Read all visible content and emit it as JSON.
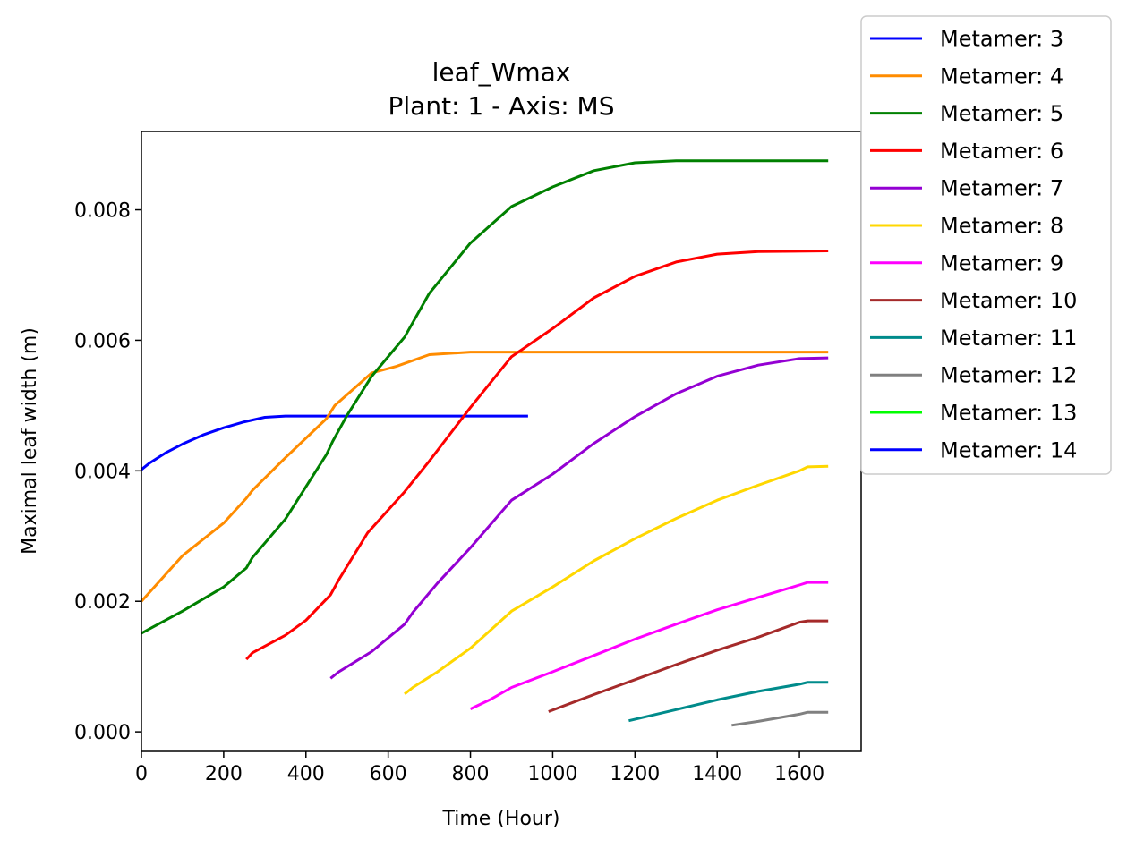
{
  "chart_data": {
    "type": "line",
    "title": [
      "leaf_Wmax",
      "Plant: 1 - Axis: MS"
    ],
    "xlabel": "Time (Hour)",
    "ylabel": "Maximal leaf width (m)",
    "xlim": [
      0,
      1750
    ],
    "ylim": [
      -0.0003,
      0.0092
    ],
    "xticks": [
      0,
      200,
      400,
      600,
      800,
      1000,
      1200,
      1400,
      1600
    ],
    "xtick_labels": [
      "0",
      "200",
      "400",
      "600",
      "800",
      "1000",
      "1200",
      "1400",
      "1600"
    ],
    "yticks": [
      0,
      0.002,
      0.004,
      0.006,
      0.008
    ],
    "ytick_labels": [
      "0.000",
      "0.002",
      "0.004",
      "0.006",
      "0.008"
    ],
    "grid": false,
    "legend_position": "outside-top-right",
    "series": [
      {
        "name": "Metamer: 3",
        "color": "#0000ff",
        "points": [
          [
            0,
            0.00402
          ],
          [
            20,
            0.00412
          ],
          [
            60,
            0.00428
          ],
          [
            100,
            0.00441
          ],
          [
            150,
            0.00455
          ],
          [
            200,
            0.00466
          ],
          [
            250,
            0.00475
          ],
          [
            300,
            0.00482
          ],
          [
            350,
            0.00484
          ],
          [
            400,
            0.00484
          ],
          [
            600,
            0.00484
          ],
          [
            800,
            0.00484
          ],
          [
            940,
            0.00484
          ]
        ]
      },
      {
        "name": "Metamer: 4",
        "color": "#ff8c00",
        "points": [
          [
            0,
            0.002
          ],
          [
            100,
            0.0027
          ],
          [
            200,
            0.0032
          ],
          [
            255,
            0.00358
          ],
          [
            270,
            0.0037
          ],
          [
            350,
            0.0042
          ],
          [
            450,
            0.0048
          ],
          [
            470,
            0.005
          ],
          [
            560,
            0.0055
          ],
          [
            620,
            0.0056
          ],
          [
            700,
            0.00578
          ],
          [
            800,
            0.00582
          ],
          [
            1000,
            0.00582
          ],
          [
            1200,
            0.00582
          ],
          [
            1400,
            0.00582
          ],
          [
            1670,
            0.00582
          ]
        ]
      },
      {
        "name": "Metamer: 5",
        "color": "#008000",
        "points": [
          [
            0,
            0.00151
          ],
          [
            20,
            0.00158
          ],
          [
            100,
            0.00185
          ],
          [
            200,
            0.00222
          ],
          [
            255,
            0.00251
          ],
          [
            270,
            0.00267
          ],
          [
            350,
            0.00326
          ],
          [
            450,
            0.00425
          ],
          [
            465,
            0.00445
          ],
          [
            500,
            0.00485
          ],
          [
            560,
            0.00545
          ],
          [
            640,
            0.00605
          ],
          [
            700,
            0.00672
          ],
          [
            800,
            0.00749
          ],
          [
            900,
            0.00805
          ],
          [
            1000,
            0.00835
          ],
          [
            1100,
            0.0086
          ],
          [
            1200,
            0.00872
          ],
          [
            1300,
            0.00875
          ],
          [
            1670,
            0.00875
          ]
        ]
      },
      {
        "name": "Metamer: 6",
        "color": "#ff0000",
        "points": [
          [
            255,
            0.00111
          ],
          [
            270,
            0.00121
          ],
          [
            350,
            0.00148
          ],
          [
            400,
            0.00171
          ],
          [
            460,
            0.0021
          ],
          [
            480,
            0.00233
          ],
          [
            550,
            0.00305
          ],
          [
            640,
            0.00368
          ],
          [
            700,
            0.00415
          ],
          [
            800,
            0.00497
          ],
          [
            900,
            0.00575
          ],
          [
            1000,
            0.00618
          ],
          [
            1100,
            0.00665
          ],
          [
            1200,
            0.00698
          ],
          [
            1300,
            0.0072
          ],
          [
            1400,
            0.00732
          ],
          [
            1500,
            0.00736
          ],
          [
            1670,
            0.00737
          ]
        ]
      },
      {
        "name": "Metamer: 7",
        "color": "#9400d3",
        "points": [
          [
            460,
            0.00082
          ],
          [
            480,
            0.00092
          ],
          [
            560,
            0.00123
          ],
          [
            640,
            0.00165
          ],
          [
            660,
            0.00183
          ],
          [
            720,
            0.00228
          ],
          [
            800,
            0.00282
          ],
          [
            900,
            0.00355
          ],
          [
            1000,
            0.00395
          ],
          [
            1100,
            0.00442
          ],
          [
            1200,
            0.00483
          ],
          [
            1300,
            0.00518
          ],
          [
            1400,
            0.00545
          ],
          [
            1500,
            0.00562
          ],
          [
            1600,
            0.00572
          ],
          [
            1670,
            0.00573
          ]
        ]
      },
      {
        "name": "Metamer: 8",
        "color": "#ffd700",
        "points": [
          [
            640,
            0.00058
          ],
          [
            660,
            0.00068
          ],
          [
            720,
            0.00092
          ],
          [
            800,
            0.00128
          ],
          [
            900,
            0.00185
          ],
          [
            1000,
            0.00222
          ],
          [
            1100,
            0.00262
          ],
          [
            1200,
            0.00296
          ],
          [
            1300,
            0.00327
          ],
          [
            1400,
            0.00355
          ],
          [
            1500,
            0.00378
          ],
          [
            1600,
            0.004
          ],
          [
            1620,
            0.00406
          ],
          [
            1670,
            0.00407
          ]
        ]
      },
      {
        "name": "Metamer: 9",
        "color": "#ff00ff",
        "points": [
          [
            800,
            0.00035
          ],
          [
            850,
            0.0005
          ],
          [
            900,
            0.00068
          ],
          [
            1000,
            0.00092
          ],
          [
            1100,
            0.00117
          ],
          [
            1200,
            0.00142
          ],
          [
            1300,
            0.00165
          ],
          [
            1400,
            0.00187
          ],
          [
            1500,
            0.00206
          ],
          [
            1600,
            0.00225
          ],
          [
            1620,
            0.00229
          ],
          [
            1670,
            0.00229
          ]
        ]
      },
      {
        "name": "Metamer: 10",
        "color": "#a52a2a",
        "points": [
          [
            990,
            0.00031
          ],
          [
            1100,
            0.00057
          ],
          [
            1200,
            0.0008
          ],
          [
            1300,
            0.00103
          ],
          [
            1400,
            0.00125
          ],
          [
            1500,
            0.00145
          ],
          [
            1600,
            0.00168
          ],
          [
            1620,
            0.0017
          ],
          [
            1670,
            0.0017
          ]
        ]
      },
      {
        "name": "Metamer: 11",
        "color": "#008b8b",
        "points": [
          [
            1185,
            0.00017
          ],
          [
            1300,
            0.00034
          ],
          [
            1400,
            0.00049
          ],
          [
            1500,
            0.00062
          ],
          [
            1600,
            0.00073
          ],
          [
            1620,
            0.00076
          ],
          [
            1670,
            0.00076
          ]
        ]
      },
      {
        "name": "Metamer: 12",
        "color": "#808080",
        "points": [
          [
            1435,
            0.0001
          ],
          [
            1500,
            0.00016
          ],
          [
            1600,
            0.00027
          ],
          [
            1620,
            0.0003
          ],
          [
            1670,
            0.0003
          ]
        ]
      },
      {
        "name": "Metamer: 13",
        "color": "#00ff00",
        "points": []
      },
      {
        "name": "Metamer: 14",
        "color": "#0000ff",
        "points": []
      }
    ]
  }
}
